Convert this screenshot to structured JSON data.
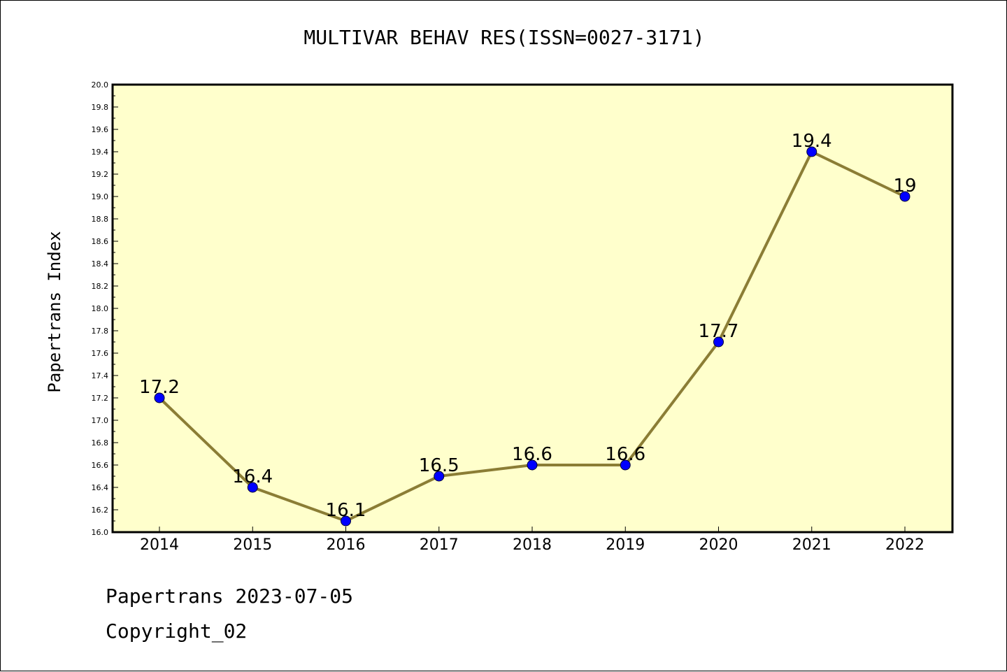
{
  "chart_data": {
    "type": "line",
    "title": "MULTIVAR BEHAV RES(ISSN=0027-3171)",
    "xlabel": "",
    "ylabel": "Papertrans Index",
    "categories": [
      "2014",
      "2015",
      "2016",
      "2017",
      "2018",
      "2019",
      "2020",
      "2021",
      "2022"
    ],
    "values": [
      17.2,
      16.4,
      16.1,
      16.5,
      16.6,
      16.6,
      17.7,
      19.4,
      19.0
    ],
    "data_labels": [
      "17.2",
      "16.4",
      "16.1",
      "16.5",
      "16.6",
      "16.6",
      "17.7",
      "19.4",
      "19"
    ],
    "ylim": [
      16.0,
      20.0
    ],
    "yticks": [
      "16.0",
      "16.2",
      "16.4",
      "16.6",
      "16.8",
      "17.0",
      "17.2",
      "17.4",
      "17.6",
      "17.8",
      "18.0",
      "18.2",
      "18.4",
      "18.6",
      "18.8",
      "19.0",
      "19.2",
      "19.4",
      "19.6",
      "19.8",
      "20.0"
    ],
    "grid": false,
    "colors": {
      "plot_background": "#ffffcc",
      "line": "#8b7d35",
      "marker": "#0000ff"
    }
  },
  "footer": {
    "line1": "Papertrans 2023-07-05",
    "line2": "Copyright_02"
  }
}
